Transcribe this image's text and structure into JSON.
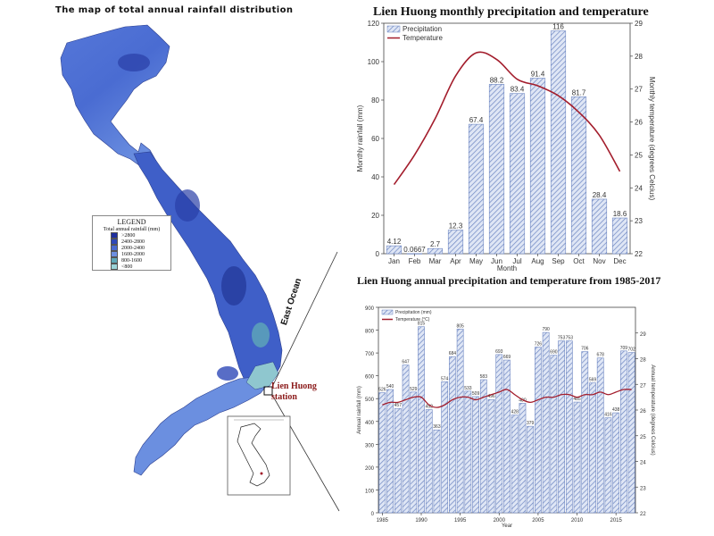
{
  "map": {
    "title": "The map of total annual rainfall distribution",
    "legend": {
      "title": "LEGEND",
      "subtitle": "Total annual rainfall (mm)",
      "items": [
        {
          "label": ">2800",
          "color": "#1f2f9e"
        },
        {
          "label": "2400-2800",
          "color": "#2e48b8"
        },
        {
          "label": "2000-2400",
          "color": "#4a6ad0"
        },
        {
          "label": "1600-2000",
          "color": "#6e8fe0"
        },
        {
          "label": "800-1600",
          "color": "#5fa8b8"
        },
        {
          "label": "<800",
          "color": "#9ad3d8"
        }
      ]
    },
    "station_label": "Lien Huong station",
    "ocean_label": "East Ocean"
  },
  "colors": {
    "precip_fill": "#b9c7e6",
    "precip_hatch": "#6d86c2",
    "temperature_line": "#a31d2c",
    "map_base": "#5a7fdc"
  },
  "chart_data": [
    {
      "type": "bar",
      "title": "Lien Huong monthly precipitation and temperature",
      "categories": [
        "Jan",
        "Feb",
        "Mar",
        "Apr",
        "May",
        "Jun",
        "Jul",
        "Aug",
        "Sep",
        "Oct",
        "Nov",
        "Dec"
      ],
      "xlabel": "Month",
      "ylabel": "Monthly rainfall (mm)",
      "y2label": "Monthly temperature (degrees Celcius)",
      "ylim": [
        0,
        120
      ],
      "y2lim": [
        22,
        29
      ],
      "yticks": [
        0,
        20,
        40,
        60,
        80,
        100,
        120
      ],
      "y2ticks": [
        22,
        23,
        24,
        25,
        26,
        27,
        28,
        29
      ],
      "legend_position": "top-left",
      "series": [
        {
          "name": "Precipitation",
          "kind": "bar",
          "values": [
            4.12,
            0.0667,
            2.7,
            12.3,
            67.4,
            88.2,
            83.4,
            91.4,
            116,
            81.7,
            28.4,
            18.6
          ],
          "labels": [
            "4.12",
            "0.0667",
            "2.7",
            "12.3",
            "67.4",
            "88.2",
            "83.4",
            "91.4",
            "116",
            "81.7",
            "28.4",
            "18.6"
          ]
        },
        {
          "name": "Temperature",
          "kind": "line",
          "axis": "right",
          "values": [
            24.1,
            25.0,
            26.1,
            27.4,
            28.1,
            27.9,
            27.3,
            27.1,
            26.8,
            26.3,
            25.6,
            24.5
          ]
        }
      ]
    },
    {
      "type": "bar",
      "title": "Lien Huong annual precipitation and temperature from 1985-2017",
      "x": [
        1985,
        1986,
        1987,
        1988,
        1989,
        1990,
        1991,
        1992,
        1993,
        1994,
        1995,
        1996,
        1997,
        1998,
        1999,
        2000,
        2001,
        2002,
        2003,
        2004,
        2005,
        2006,
        2007,
        2008,
        2009,
        2010,
        2011,
        2012,
        2013,
        2014,
        2015,
        2016,
        2017
      ],
      "xlabel": "Year",
      "ylabel": "Annual rainfall (mm)",
      "y2label": "Annual temperature (degrees Celcius)",
      "ylim": [
        0,
        900
      ],
      "y2lim": [
        22,
        30
      ],
      "yticks": [
        0,
        100,
        200,
        300,
        400,
        500,
        600,
        700,
        800,
        900
      ],
      "y2ticks": [
        22,
        23,
        24,
        25,
        26,
        27,
        28,
        29
      ],
      "xticks": [
        1985,
        1990,
        1995,
        2000,
        2005,
        2010,
        2015
      ],
      "legend_position": "top-left",
      "series": [
        {
          "name": "Precipitation (mm)",
          "kind": "bar",
          "values": [
            526,
            540,
            457,
            647,
            529,
            815,
            452,
            363,
            574,
            684,
            805,
            533,
            509,
            583,
            496,
            693,
            669,
            428,
            480,
            379,
            726,
            790,
            690,
            753,
            753,
            485,
            706,
            569,
            678,
            416,
            438,
            709,
            702
          ],
          "labels": [
            "526",
            "540",
            "457",
            "647",
            "529",
            "815",
            "452",
            "363",
            "574",
            "684",
            "805",
            "533",
            "509",
            "583",
            "496",
            "693",
            "669",
            "428",
            "480",
            "379",
            "726",
            "790",
            "690",
            "753",
            "753",
            "485",
            "706",
            "569",
            "678",
            "416",
            "438",
            "709",
            "702"
          ]
        },
        {
          "name": "Temperature (°C)",
          "kind": "line",
          "axis": "right",
          "values": [
            26.2,
            26.3,
            26.3,
            26.4,
            26.5,
            26.5,
            26.2,
            26.1,
            26.2,
            26.4,
            26.5,
            26.5,
            26.4,
            26.5,
            26.6,
            26.7,
            26.8,
            26.6,
            26.4,
            26.3,
            26.4,
            26.5,
            26.5,
            26.6,
            26.6,
            26.5,
            26.6,
            26.6,
            26.7,
            26.6,
            26.7,
            26.8,
            26.8
          ]
        }
      ]
    }
  ]
}
